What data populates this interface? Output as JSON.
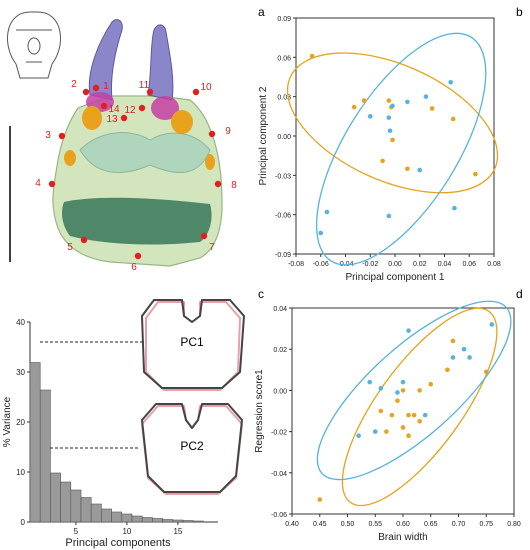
{
  "panel_labels": {
    "a": "a",
    "b": "b",
    "c": "c",
    "d": "d"
  },
  "colors": {
    "orange": "#e8a21e",
    "blue": "#55b3e0",
    "bar": "#9a9a9a",
    "dark": "#444444",
    "pink": "#e8a0a6",
    "red": "#e02020",
    "skull_green": "#cfe3b5",
    "muscle_green": "#3f7d5f"
  },
  "landmarks": [
    "1",
    "2",
    "3",
    "4",
    "5",
    "6",
    "7",
    "8",
    "9",
    "10",
    "11",
    "12",
    "13",
    "14"
  ],
  "shape_labels": {
    "pc1": "PC1",
    "pc2": "PC2"
  },
  "chart_data": [
    {
      "id": "pca-scatter",
      "type": "scatter",
      "xlabel": "Principal component 1",
      "ylabel": "Principal component 2",
      "xlim": [
        -0.08,
        0.08
      ],
      "ylim": [
        -0.09,
        0.09
      ],
      "xticks": [
        "-0.08",
        "-0.06",
        "-0.04",
        "-0.02",
        "0.00",
        "0.02",
        "0.04",
        "0.06",
        "0.08"
      ],
      "yticks": [
        "0.09",
        "0.06",
        "0.03",
        "0.00",
        "-0.03",
        "-0.06",
        "-0.09"
      ],
      "series": [
        {
          "color": "#e8a21e",
          "points": [
            [
              -0.067,
              0.061
            ],
            [
              -0.033,
              0.022
            ],
            [
              -0.025,
              0.027
            ],
            [
              -0.01,
              -0.019
            ],
            [
              -0.005,
              0.027
            ],
            [
              -0.003,
              0.022
            ],
            [
              0.01,
              -0.025
            ],
            [
              0.03,
              0.021
            ],
            [
              0.047,
              0.013
            ],
            [
              0.065,
              -0.029
            ],
            [
              -0.002,
              -0.003
            ]
          ]
        },
        {
          "color": "#55b3e0",
          "points": [
            [
              -0.06,
              -0.074
            ],
            [
              -0.055,
              -0.058
            ],
            [
              -0.02,
              0.015
            ],
            [
              -0.005,
              0.014
            ],
            [
              -0.004,
              0.004
            ],
            [
              -0.002,
              0.023
            ],
            [
              -0.005,
              -0.061
            ],
            [
              0.01,
              0.026
            ],
            [
              0.02,
              -0.026
            ],
            [
              0.025,
              0.03
            ],
            [
              0.045,
              0.041
            ],
            [
              0.048,
              -0.055
            ]
          ]
        }
      ]
    },
    {
      "id": "variance-bar",
      "type": "bar",
      "xlabel": "Principal components",
      "ylabel": "% Variance",
      "xticks": [
        "5",
        "10",
        "15"
      ],
      "yticks": [
        "0",
        "10",
        "20",
        "30",
        "40"
      ],
      "ylim": [
        0,
        40
      ],
      "values": [
        31.9,
        26.4,
        9.8,
        8.0,
        6.4,
        4.9,
        3.6,
        2.6,
        2.0,
        1.6,
        1.2,
        0.9,
        0.7,
        0.5,
        0.4,
        0.3,
        0.2
      ]
    },
    {
      "id": "regression-scatter",
      "type": "scatter",
      "xlabel": "Brain width",
      "ylabel": "Regression score1",
      "xlim": [
        0.4,
        0.8
      ],
      "ylim": [
        -0.06,
        0.04
      ],
      "xticks": [
        "0.40",
        "0.45",
        "0.50",
        "0.55",
        "0.60",
        "0.65",
        "0.70",
        "0.75",
        "0.80"
      ],
      "yticks": [
        "0.04",
        "0.02",
        "0.00",
        "-0.02",
        "-0.04",
        "-0.06"
      ],
      "series": [
        {
          "color": "#e8a21e",
          "points": [
            [
              0.45,
              -0.053
            ],
            [
              0.56,
              -0.01
            ],
            [
              0.57,
              -0.02
            ],
            [
              0.58,
              -0.012
            ],
            [
              0.59,
              -0.005
            ],
            [
              0.6,
              0.0
            ],
            [
              0.6,
              -0.018
            ],
            [
              0.61,
              -0.012
            ],
            [
              0.61,
              -0.022
            ],
            [
              0.62,
              -0.012
            ],
            [
              0.63,
              0.0
            ],
            [
              0.63,
              -0.015
            ],
            [
              0.65,
              0.003
            ],
            [
              0.68,
              0.01
            ],
            [
              0.69,
              0.024
            ],
            [
              0.75,
              0.009
            ]
          ]
        },
        {
          "color": "#55b3e0",
          "points": [
            [
              0.52,
              -0.022
            ],
            [
              0.54,
              0.004
            ],
            [
              0.55,
              -0.02
            ],
            [
              0.56,
              0.001
            ],
            [
              0.59,
              -0.001
            ],
            [
              0.6,
              0.004
            ],
            [
              0.61,
              0.029
            ],
            [
              0.64,
              -0.012
            ],
            [
              0.69,
              0.016
            ],
            [
              0.71,
              0.02
            ],
            [
              0.72,
              0.016
            ],
            [
              0.76,
              0.032
            ]
          ]
        }
      ]
    }
  ]
}
